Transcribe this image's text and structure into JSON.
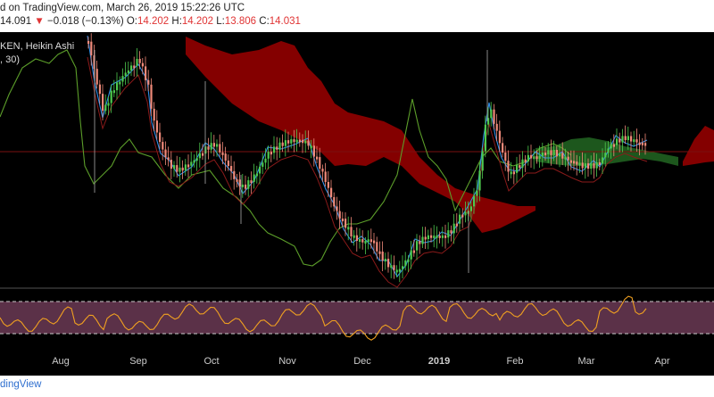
{
  "header": {
    "publish_line": "d on TradingView.com, March 26, 2019 15:22:26 UTC",
    "last_price": "14.091",
    "change_arrow": "▼",
    "change": "−0.018 (−0.13%)",
    "open_label": "O:",
    "open_value": "14.202",
    "high_label": "H:",
    "high_value": "14.202",
    "low_label": "L:",
    "low_value": "13.806",
    "close_label": "C:",
    "close_value": "14.031"
  },
  "legend": {
    "symbol_line": "KEN, Heikin Ashi",
    "indicator_line": ", 30)"
  },
  "time_axis": [
    "Aug",
    "Sep",
    "Oct",
    "Nov",
    "Dec",
    "2019",
    "Feb",
    "Mar",
    "Apr"
  ],
  "footer": {
    "brand": "dingView"
  },
  "colors": {
    "background": "#000000",
    "candle_up": "#4ec94e",
    "candle_down": "#f08a7a",
    "cloud_bear": "#8b0000",
    "cloud_bull": "#1f5c1f",
    "tenkan": "#2f8fe8",
    "kijun": "#8b1a1a",
    "chikou": "#5c9e2a",
    "rsi_line": "#f0a020",
    "rsi_band": "#6b3a55"
  }
}
